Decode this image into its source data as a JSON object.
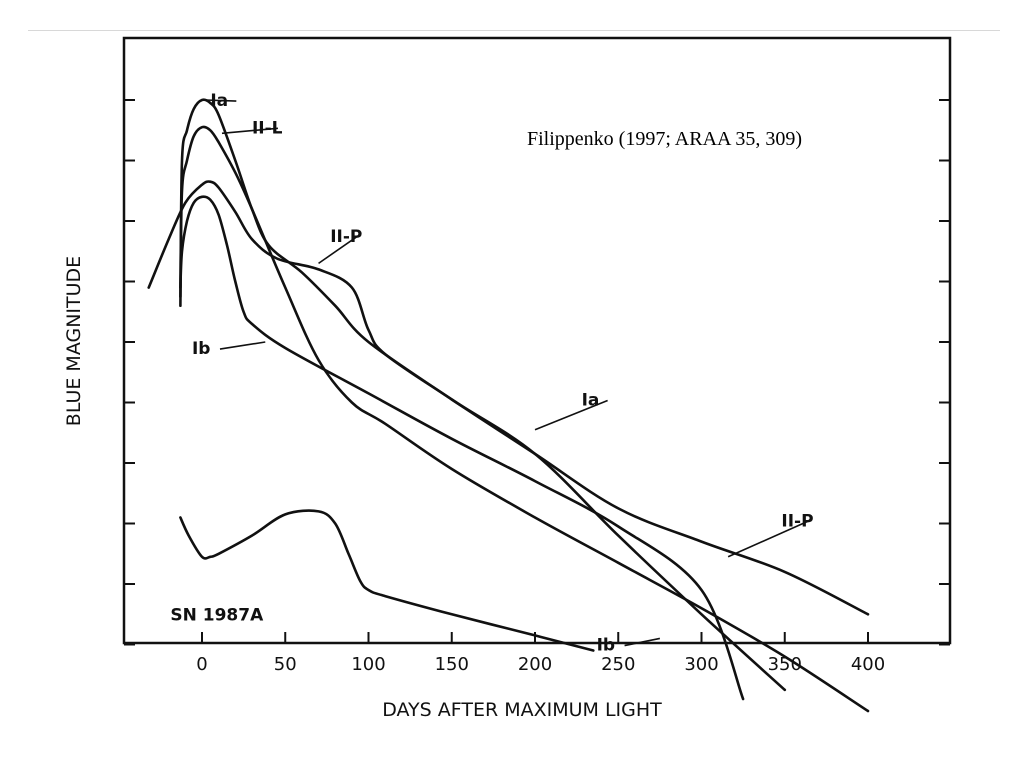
{
  "slide": {
    "credit": "Filippenko (1997; ARAA 35, 309)"
  },
  "chart_data": {
    "type": "line",
    "title": "",
    "xlabel": "DAYS AFTER MAXIMUM LIGHT",
    "ylabel": "BLUE MAGNITUDE",
    "xlim": [
      -47,
      450
    ],
    "xticks": [
      0,
      50,
      100,
      150,
      200,
      250,
      300,
      350,
      400
    ],
    "y_unit": "relative blue magnitude (brighter at top, no tick labels printed)",
    "ylim": [
      0,
      10
    ],
    "y_tick_count": 10,
    "grid": false,
    "legend": "none; curves labeled inline",
    "series": [
      {
        "name": "Ia",
        "label_near": [
          5,
          0.1
        ],
        "leader_to": [
          2,
          0.0
        ],
        "mid_label": "Ia",
        "mid_label_near": [
          228,
          5.05
        ],
        "mid_leader_to": [
          200,
          5.45
        ],
        "x": [
          -13,
          -12,
          -9,
          -5,
          0,
          5,
          10,
          20,
          30,
          40,
          60,
          80,
          100,
          150,
          200,
          250,
          300,
          350
        ],
        "y": [
          3.4,
          1.0,
          0.5,
          0.15,
          0.0,
          0.05,
          0.25,
          1.0,
          1.8,
          2.4,
          2.85,
          3.4,
          4.0,
          4.95,
          5.85,
          7.2,
          8.5,
          9.75
        ]
      },
      {
        "name": "II-L",
        "label_near": [
          30,
          0.55
        ],
        "leader_to": [
          12,
          0.55
        ],
        "x": [
          -13,
          -12,
          -9,
          -5,
          0,
          5,
          10,
          20,
          30,
          50,
          70,
          90,
          110,
          150,
          200,
          250,
          300,
          350,
          400
        ],
        "y": [
          3.25,
          1.5,
          1.0,
          0.6,
          0.45,
          0.5,
          0.7,
          1.2,
          1.8,
          3.1,
          4.3,
          5.0,
          5.35,
          6.1,
          6.9,
          7.65,
          8.4,
          9.2,
          10.1
        ]
      },
      {
        "name": "II-P",
        "label_near": [
          77,
          2.35
        ],
        "leader_to": [
          70,
          2.7
        ],
        "mid_label": "II-P",
        "mid_label_near": [
          348,
          7.05
        ],
        "mid_leader_to": [
          316,
          7.55
        ],
        "x": [
          -32,
          -20,
          -10,
          0,
          5,
          10,
          20,
          30,
          45,
          70,
          90,
          100,
          110,
          150,
          200,
          250,
          300,
          350,
          400
        ],
        "y": [
          3.1,
          2.3,
          1.7,
          1.4,
          1.35,
          1.45,
          1.85,
          2.3,
          2.62,
          2.8,
          3.1,
          3.8,
          4.2,
          4.95,
          5.85,
          6.75,
          7.3,
          7.8,
          8.5
        ]
      },
      {
        "name": "Ib",
        "label_near": [
          12,
          4.2
        ],
        "leader_to": [
          38,
          4.0
        ],
        "mid_label": "Ib",
        "mid_label_near": [
          255,
          9.1
        ],
        "mid_leader_to": [
          275,
          8.9
        ],
        "x": [
          -13,
          -12,
          -9,
          -5,
          0,
          5,
          10,
          15,
          20,
          25,
          30,
          50,
          100,
          150,
          200,
          250,
          300,
          325
        ],
        "y": [
          3.1,
          2.5,
          2.0,
          1.7,
          1.6,
          1.65,
          1.9,
          2.4,
          3.0,
          3.5,
          3.7,
          4.1,
          4.85,
          5.6,
          6.3,
          7.05,
          8.1,
          9.9
        ]
      },
      {
        "name": "SN 1987A",
        "label_near": [
          -19,
          8.6
        ],
        "x": [
          -13,
          -8,
          0,
          5,
          10,
          30,
          50,
          70,
          80,
          88,
          95,
          100,
          110,
          150,
          200,
          235
        ],
        "y": [
          6.9,
          7.2,
          7.55,
          7.55,
          7.5,
          7.2,
          6.85,
          6.8,
          7.0,
          7.5,
          7.95,
          8.1,
          8.2,
          8.5,
          8.85,
          9.1
        ]
      }
    ]
  }
}
